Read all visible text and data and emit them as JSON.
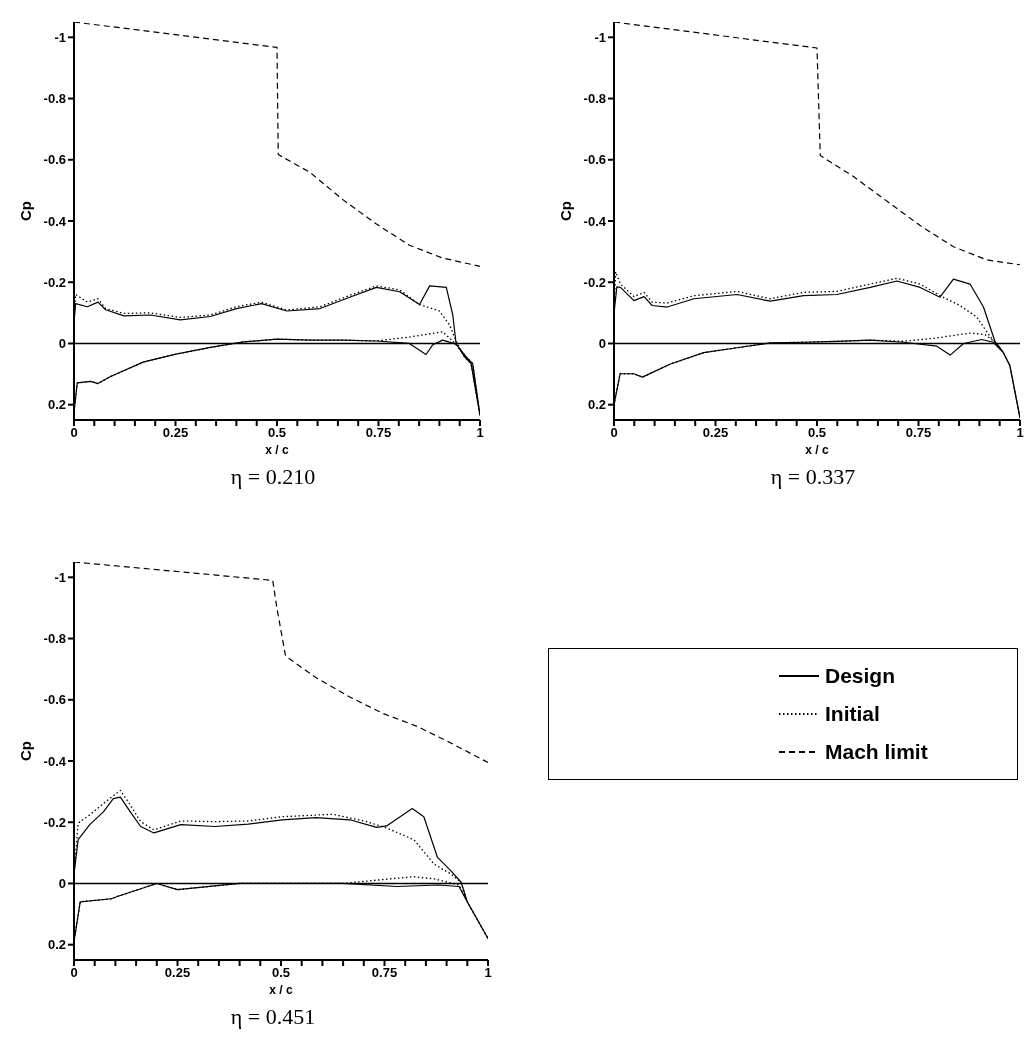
{
  "chart_data": [
    {
      "type": "line",
      "title": "η = 0.210",
      "xlabel": "x / c",
      "ylabel": "Cp",
      "xlim": [
        0,
        1
      ],
      "xticks": [
        0,
        {
          "value": 0.05,
          "label": null
        },
        {
          "value": 0.1,
          "label": null
        },
        {
          "value": 0.15,
          "label": null
        },
        {
          "value": 0.2,
          "label": null
        },
        0.25,
        {
          "value": 0.3,
          "label": null
        },
        {
          "value": 0.35,
          "label": null
        },
        {
          "value": 0.4,
          "label": null
        },
        {
          "value": 0.45,
          "label": null
        },
        0.5,
        {
          "value": 0.55,
          "label": null
        },
        {
          "value": 0.6,
          "label": null
        },
        {
          "value": 0.65,
          "label": null
        },
        {
          "value": 0.7,
          "label": null
        },
        0.75,
        {
          "value": 0.8,
          "label": null
        },
        {
          "value": 0.85,
          "label": null
        },
        {
          "value": 0.9,
          "label": null
        },
        {
          "value": 0.95,
          "label": null
        },
        1
      ],
      "ylim": [
        0.25,
        -1.05
      ],
      "yticks": [
        0.2,
        0,
        -0.2,
        -0.4,
        -0.6,
        -0.8,
        -1
      ],
      "ref_lines": [
        {
          "axis": "y",
          "value": 0,
          "color": "#000000",
          "line_style": "solid"
        }
      ],
      "series": [
        {
          "color": "#000000",
          "line_style": "solid",
          "x": [
            0,
            0.004,
            0.033,
            0.059,
            0.078,
            0.123,
            0.188,
            0.262,
            0.336,
            0.4,
            0.462,
            0.524,
            0.606,
            0.679,
            0.745,
            0.802,
            0.851,
            0.876,
            0.917,
            0.933,
            0.941,
            0.962,
            0.978,
            1,
            0.982,
            0.966,
            0.941,
            0.908,
            0.884,
            0.867,
            0.826,
            0.745,
            0.663,
            0.581,
            0.5,
            0.417,
            0.336,
            0.254,
            0.172,
            0.09,
            0.059,
            0.041,
            0.008,
            0
          ],
          "values": [
            -0.07,
            -0.13,
            -0.12,
            -0.135,
            -0.11,
            -0.09,
            -0.093,
            -0.077,
            -0.088,
            -0.114,
            -0.13,
            -0.106,
            -0.114,
            -0.151,
            -0.183,
            -0.169,
            -0.127,
            -0.188,
            -0.183,
            -0.093,
            0,
            0.044,
            0.066,
            0.235,
            0.066,
            0.044,
            0.002,
            -0.011,
            0.004,
            0.036,
            0,
            -0.008,
            -0.011,
            -0.011,
            -0.014,
            -0.005,
            0.013,
            0.034,
            0.06,
            0.108,
            0.131,
            0.124,
            0.129,
            0.224
          ]
        },
        {
          "color": "#000000",
          "line_style": "dotted",
          "x": [
            0,
            0.004,
            0.033,
            0.059,
            0.078,
            0.123,
            0.188,
            0.262,
            0.336,
            0.4,
            0.462,
            0.524,
            0.606,
            0.679,
            0.745,
            0.802,
            0.851,
            0.9,
            0.925,
            0.941,
            0.962,
            0.978,
            1,
            0.982,
            0.966,
            0.933,
            0.908,
            0.826,
            0.745,
            0.663,
            0.581,
            0.5,
            0.417,
            0.336,
            0.254,
            0.172,
            0.09,
            0.059,
            0.041,
            0.008,
            0
          ],
          "values": [
            -0.07,
            -0.16,
            -0.135,
            -0.146,
            -0.114,
            -0.098,
            -0.1,
            -0.085,
            -0.093,
            -0.12,
            -0.135,
            -0.109,
            -0.12,
            -0.157,
            -0.188,
            -0.175,
            -0.127,
            -0.106,
            -0.061,
            -0.008,
            0.044,
            0.066,
            0.235,
            0.066,
            0.044,
            -0.008,
            -0.038,
            -0.021,
            -0.008,
            -0.011,
            -0.011,
            -0.014,
            -0.005,
            0.013,
            0.034,
            0.06,
            0.108,
            0.131,
            0.124,
            0.129,
            0.224
          ]
        },
        {
          "color": "#000000",
          "line_style": "dashed",
          "x": [
            0,
            0.5,
            0.503,
            0.581,
            0.663,
            0.745,
            0.826,
            0.908,
            1
          ],
          "values": [
            -1.05,
            -0.967,
            -0.617,
            -0.559,
            -0.469,
            -0.39,
            -0.321,
            -0.279,
            -0.252
          ]
        }
      ]
    },
    {
      "type": "line",
      "title": "η = 0.337",
      "xlabel": "x / c",
      "ylabel": "Cp",
      "xlim": [
        0,
        1
      ],
      "xticks": [
        0,
        {
          "value": 0.05,
          "label": null
        },
        {
          "value": 0.1,
          "label": null
        },
        {
          "value": 0.15,
          "label": null
        },
        {
          "value": 0.2,
          "label": null
        },
        0.25,
        {
          "value": 0.3,
          "label": null
        },
        {
          "value": 0.35,
          "label": null
        },
        {
          "value": 0.4,
          "label": null
        },
        {
          "value": 0.45,
          "label": null
        },
        0.5,
        {
          "value": 0.55,
          "label": null
        },
        {
          "value": 0.6,
          "label": null
        },
        {
          "value": 0.65,
          "label": null
        },
        {
          "value": 0.7,
          "label": null
        },
        0.75,
        {
          "value": 0.8,
          "label": null
        },
        {
          "value": 0.85,
          "label": null
        },
        {
          "value": 0.9,
          "label": null
        },
        {
          "value": 0.95,
          "label": null
        },
        1
      ],
      "ylim": [
        0.25,
        -1.05
      ],
      "yticks": [
        0.2,
        0,
        -0.2,
        -0.4,
        -0.6,
        -0.8,
        -1
      ],
      "ref_lines": [
        {
          "axis": "y",
          "value": 0,
          "color": "#000000",
          "line_style": "solid"
        }
      ],
      "series": [
        {
          "color": "#000000",
          "line_style": "solid",
          "x": [
            0,
            0.007,
            0.016,
            0.049,
            0.074,
            0.094,
            0.131,
            0.197,
            0.303,
            0.385,
            0.467,
            0.549,
            0.631,
            0.697,
            0.754,
            0.803,
            0.836,
            0.877,
            0.91,
            0.939,
            0.959,
            0.975,
            1,
            0.975,
            0.959,
            0.934,
            0.906,
            0.861,
            0.828,
            0.795,
            0.713,
            0.631,
            0.549,
            0.467,
            0.385,
            0.303,
            0.221,
            0.139,
            0.07,
            0.049,
            0.015,
            0
          ],
          "values": [
            -0.098,
            -0.185,
            -0.183,
            -0.14,
            -0.153,
            -0.124,
            -0.119,
            -0.146,
            -0.16,
            -0.138,
            -0.156,
            -0.16,
            -0.183,
            -0.204,
            -0.183,
            -0.151,
            -0.21,
            -0.194,
            -0.119,
            -0.004,
            0.03,
            0.072,
            0.243,
            0.072,
            0.03,
            -0.004,
            -0.013,
            0,
            0.038,
            0.009,
            -0.004,
            -0.011,
            -0.007,
            -0.004,
            -0.002,
            0.014,
            0.03,
            0.067,
            0.11,
            0.099,
            0.099,
            0.2
          ]
        },
        {
          "color": "#000000",
          "line_style": "dotted",
          "x": [
            0,
            0.004,
            0.016,
            0.049,
            0.074,
            0.094,
            0.131,
            0.197,
            0.303,
            0.385,
            0.467,
            0.549,
            0.631,
            0.697,
            0.754,
            0.803,
            0.852,
            0.893,
            0.926,
            0.943,
            0.959,
            0.975,
            1,
            0.975,
            0.959,
            0.943,
            0.914,
            0.877,
            0.795,
            0.713,
            0.631,
            0.549,
            0.467,
            0.385,
            0.303,
            0.221,
            0.139,
            0.07,
            0.049,
            0.015,
            0
          ],
          "values": [
            -0.098,
            -0.234,
            -0.194,
            -0.153,
            -0.167,
            -0.135,
            -0.132,
            -0.156,
            -0.17,
            -0.146,
            -0.167,
            -0.17,
            -0.194,
            -0.213,
            -0.194,
            -0.156,
            -0.124,
            -0.087,
            -0.023,
            0,
            0.03,
            0.072,
            0.243,
            0.072,
            0.03,
            0,
            -0.029,
            -0.034,
            -0.018,
            -0.007,
            -0.011,
            -0.007,
            -0.004,
            -0.002,
            0.014,
            0.03,
            0.067,
            0.11,
            0.099,
            0.099,
            0.2
          ]
        },
        {
          "color": "#000000",
          "line_style": "dashed",
          "x": [
            0,
            0.5,
            0.508,
            0.59,
            0.672,
            0.754,
            0.836,
            0.918,
            1
          ],
          "values": [
            -1.05,
            -0.965,
            -0.614,
            -0.545,
            -0.465,
            -0.385,
            -0.316,
            -0.273,
            -0.257
          ]
        }
      ]
    },
    {
      "type": "line",
      "title": "η = 0.451",
      "xlabel": "x / c",
      "ylabel": "Cp",
      "xlim": [
        0,
        1
      ],
      "xticks": [
        0,
        {
          "value": 0.05,
          "label": null
        },
        {
          "value": 0.1,
          "label": null
        },
        {
          "value": 0.15,
          "label": null
        },
        {
          "value": 0.2,
          "label": null
        },
        0.25,
        {
          "value": 0.3,
          "label": null
        },
        {
          "value": 0.35,
          "label": null
        },
        {
          "value": 0.4,
          "label": null
        },
        {
          "value": 0.45,
          "label": null
        },
        0.5,
        {
          "value": 0.55,
          "label": null
        },
        {
          "value": 0.6,
          "label": null
        },
        {
          "value": 0.65,
          "label": null
        },
        {
          "value": 0.7,
          "label": null
        },
        0.75,
        {
          "value": 0.8,
          "label": null
        },
        {
          "value": 0.85,
          "label": null
        },
        {
          "value": 0.9,
          "label": null
        },
        {
          "value": 0.95,
          "label": null
        },
        1
      ],
      "ylim": [
        0.25,
        -1.05
      ],
      "yticks": [
        0.2,
        0,
        -0.2,
        -0.4,
        -0.6,
        -0.8,
        -1
      ],
      "ref_lines": [
        {
          "axis": "y",
          "value": 0,
          "color": "#000000",
          "line_style": "solid"
        }
      ],
      "legend": "right",
      "series": [
        {
          "name": "Design",
          "color": "#000000",
          "line_style": "solid",
          "x": [
            0,
            0.01,
            0.038,
            0.071,
            0.095,
            0.112,
            0.136,
            0.161,
            0.193,
            0.258,
            0.34,
            0.421,
            0.503,
            0.584,
            0.666,
            0.731,
            0.755,
            0.817,
            0.845,
            0.878,
            0.91,
            0.935,
            0.95,
            1,
            0.95,
            0.93,
            0.88,
            0.78,
            0.65,
            0.4,
            0.25,
            0.2,
            0.11,
            0.09,
            0.015,
            0
          ],
          "values": [
            -0.03,
            -0.143,
            -0.192,
            -0.234,
            -0.277,
            -0.282,
            -0.234,
            -0.186,
            -0.165,
            -0.192,
            -0.186,
            -0.194,
            -0.208,
            -0.215,
            -0.208,
            -0.183,
            -0.188,
            -0.245,
            -0.218,
            -0.085,
            -0.042,
            -0.004,
            0.06,
            0.18,
            0.06,
            0.01,
            0.005,
            0.01,
            0,
            0,
            0.02,
            0,
            0.04,
            0.05,
            0.06,
            0.19
          ]
        },
        {
          "name": "Initial",
          "color": "#000000",
          "line_style": "dotted",
          "x": [
            0,
            0.01,
            0.038,
            0.071,
            0.112,
            0.136,
            0.161,
            0.193,
            0.258,
            0.34,
            0.421,
            0.503,
            0.625,
            0.707,
            0.755,
            0.821,
            0.87,
            0.91,
            0.935,
            0.95,
            1,
            0.95,
            0.93,
            0.87,
            0.821,
            0.747,
            0.65,
            0.4,
            0.25,
            0.2,
            0.11,
            0.09,
            0.015,
            0
          ],
          "values": [
            -0.03,
            -0.197,
            -0.224,
            -0.261,
            -0.304,
            -0.256,
            -0.202,
            -0.175,
            -0.204,
            -0.202,
            -0.204,
            -0.218,
            -0.226,
            -0.202,
            -0.181,
            -0.143,
            -0.063,
            -0.031,
            -0.004,
            0.06,
            0.18,
            0.06,
            0.005,
            -0.015,
            -0.022,
            -0.013,
            0,
            0,
            0.02,
            0,
            0.04,
            0.05,
            0.06,
            0.19
          ]
        },
        {
          "name": "Mach limit",
          "color": "#000000",
          "line_style": "dashed",
          "x": [
            0,
            0.48,
            0.49,
            0.511,
            0.584,
            0.666,
            0.747,
            0.829,
            0.91,
            1
          ],
          "values": [
            -1.05,
            -0.99,
            -0.9,
            -0.743,
            -0.673,
            -0.609,
            -0.555,
            -0.513,
            -0.459,
            -0.395
          ]
        }
      ]
    }
  ]
}
